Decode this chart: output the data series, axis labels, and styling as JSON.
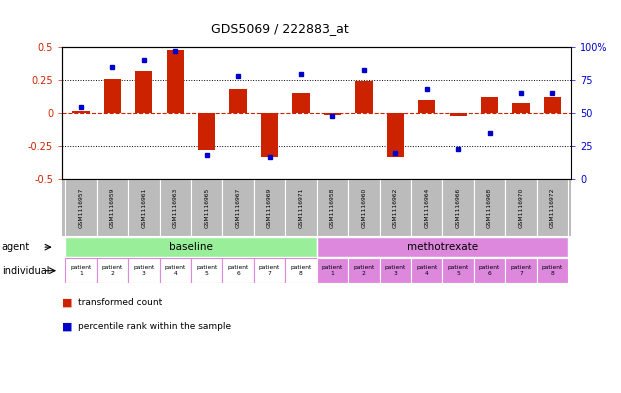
{
  "title": "GDS5069 / 222883_at",
  "samples": [
    "GSM1116957",
    "GSM1116959",
    "GSM1116961",
    "GSM1116963",
    "GSM1116965",
    "GSM1116967",
    "GSM1116969",
    "GSM1116971",
    "GSM1116958",
    "GSM1116960",
    "GSM1116962",
    "GSM1116964",
    "GSM1116966",
    "GSM1116968",
    "GSM1116970",
    "GSM1116972"
  ],
  "bar_values": [
    0.02,
    0.26,
    0.32,
    0.48,
    -0.28,
    0.18,
    -0.33,
    0.15,
    -0.01,
    0.24,
    -0.33,
    0.1,
    -0.02,
    0.12,
    0.08,
    0.12
  ],
  "percentile_values": [
    55,
    85,
    90,
    97,
    18,
    78,
    17,
    80,
    48,
    83,
    20,
    68,
    23,
    35,
    65,
    65
  ],
  "bar_color": "#cc2200",
  "dot_color": "#0000cc",
  "ylim_left": [
    -0.5,
    0.5
  ],
  "ylim_right": [
    0,
    100
  ],
  "yticks_left": [
    -0.5,
    -0.25,
    0.0,
    0.25,
    0.5
  ],
  "yticks_right": [
    0,
    25,
    50,
    75,
    100
  ],
  "agent_labels": [
    "baseline",
    "methotrexate"
  ],
  "row_labels": [
    "agent",
    "individual"
  ],
  "baseline_color": "#99ee99",
  "methotrexate_color": "#dd88dd",
  "sample_bg_color": "#bbbbbb",
  "bg_color": "#ffffff",
  "tick_label_color_left": "#cc2200",
  "tick_label_color_right": "#0000cc",
  "legend_bar_label": "transformed count",
  "legend_dot_label": "percentile rank within the sample",
  "zero_line_color": "#cc2200",
  "grid_color": "#000000"
}
